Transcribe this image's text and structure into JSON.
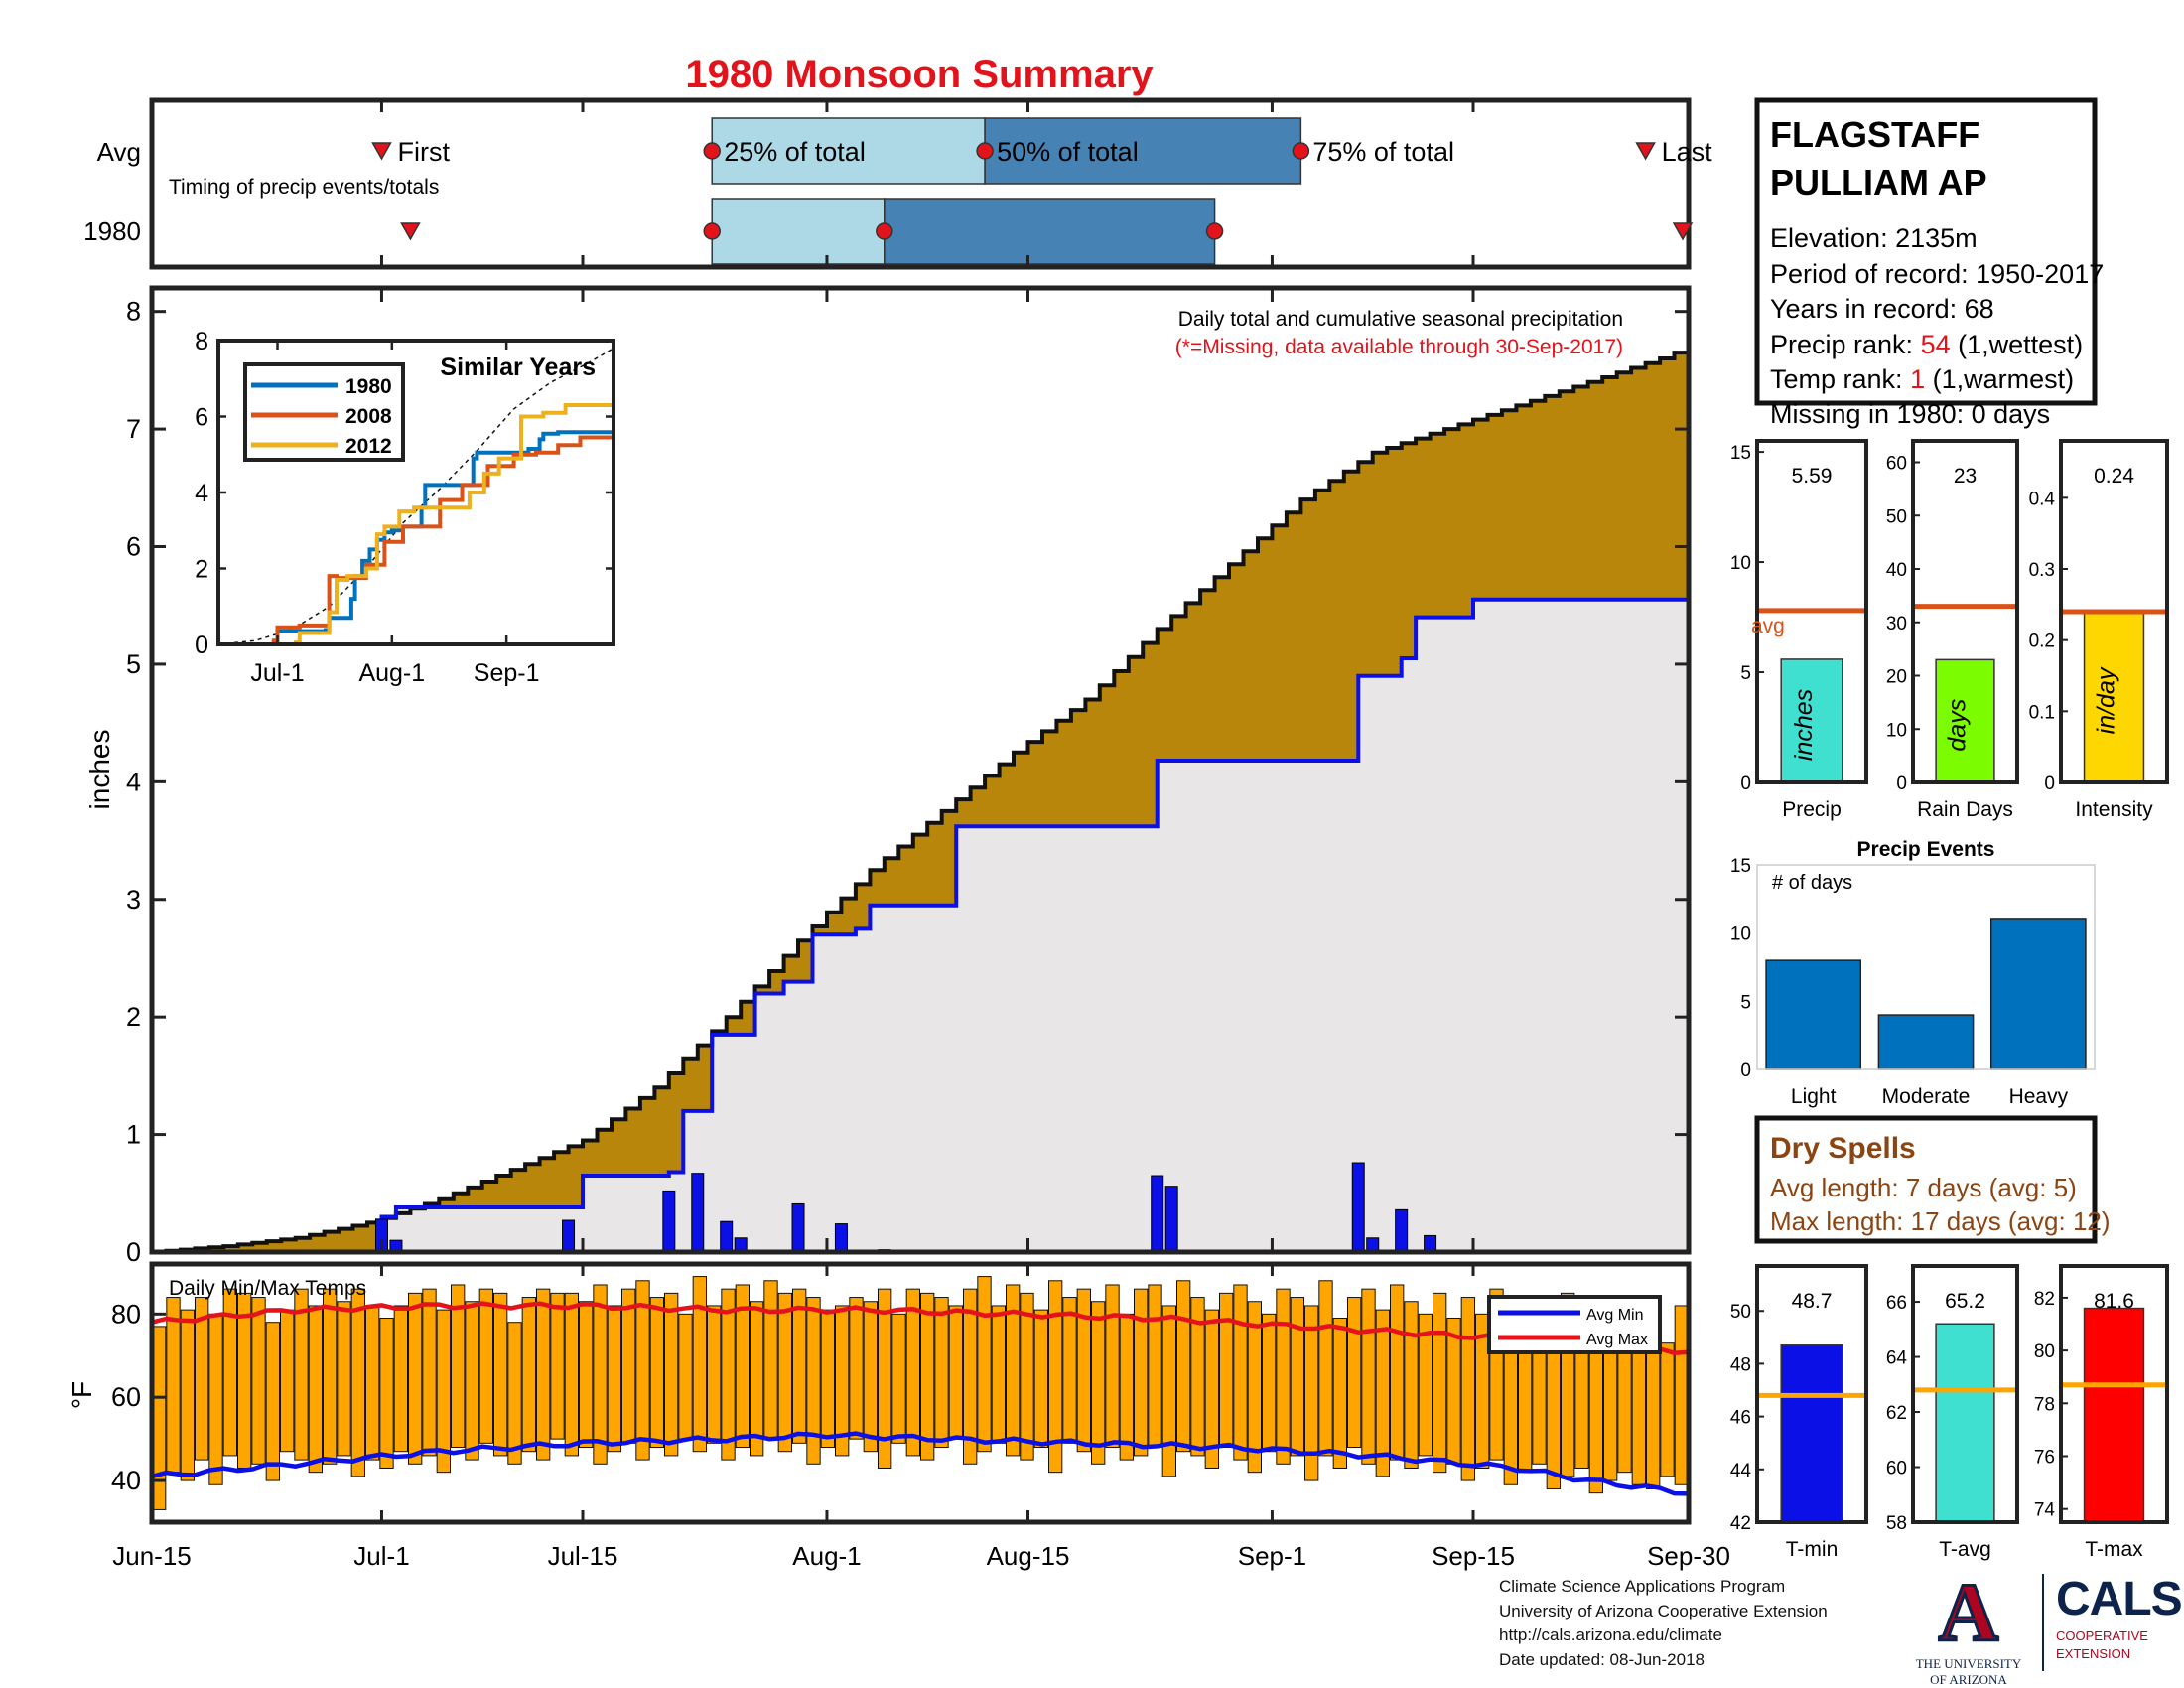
{
  "title": "1980 Monsoon Summary",
  "colors": {
    "title": "#e3131b",
    "red": "#e3131b",
    "brown_text": "#8b4513",
    "cum_fill": "#b8860b",
    "avg_fill": "#e8e6e6",
    "avg_line": "#0a10e6",
    "daily_bar": "#0a10e6",
    "temp_bar": "#ffa500",
    "avg_min_line": "#0a10e6",
    "avg_max_line": "#e3131b",
    "box_light": "#add8e6",
    "box_dark": "#4682b4",
    "events_bar": "#0072bd",
    "stat_avg_line": "#d95319",
    "temp_avg_line": "#ffa500"
  },
  "timing": {
    "label": "Timing of precip events/totals",
    "row_labels": [
      "Avg",
      "1980"
    ],
    "avg_labels": {
      "first": "First",
      "p25": "25% of total",
      "p50": "50% of total",
      "p75": "75% of total",
      "last": "Last"
    },
    "avg": {
      "first": 16,
      "p25": 39,
      "p50": 58,
      "p75": 80,
      "last": 104
    },
    "year": {
      "first": 18,
      "p25": 39,
      "p50": 51,
      "p75": 74,
      "last": 111
    }
  },
  "station": {
    "name_line1": "FLAGSTAFF",
    "name_line2": "PULLIAM AP",
    "elevation": "Elevation: 2135m",
    "period": "Period of record: 1950-2017",
    "years": "Years in record: 68",
    "precip_rank_label": "Precip rank: ",
    "precip_rank_value": "54",
    "precip_rank_note": " (1,wettest)",
    "temp_rank_label": "Temp rank: ",
    "temp_rank_value": "1",
    "temp_rank_note": " (1,warmest)",
    "missing": "Missing in 1980: 0 days"
  },
  "main_chart": {
    "ylabel": "inches",
    "ylim": [
      0,
      8.2
    ],
    "yticks": [
      0,
      1,
      2,
      3,
      4,
      5,
      6,
      7,
      8
    ],
    "annotation1": "Daily total and cumulative seasonal precipitation",
    "annotation2": "(*=Missing, data available through 30-Sep-2017)"
  },
  "x_axis": {
    "tick_labels": [
      "Jun-15",
      "Jul-1",
      "Jul-15",
      "Aug-1",
      "Aug-15",
      "Sep-1",
      "Sep-15",
      "Sep-30"
    ],
    "tick_days": [
      0,
      16,
      30,
      47,
      61,
      78,
      92,
      107
    ]
  },
  "inset": {
    "title": "Similar Years",
    "ylim": [
      0,
      8
    ],
    "yticks": [
      0,
      2,
      4,
      6,
      8
    ],
    "xtick_labels": [
      "Jul-1",
      "Aug-1",
      "Sep-1"
    ],
    "xtick_days": [
      16,
      47,
      78
    ]
  },
  "stats": {
    "precip": {
      "label": "Precip",
      "unit": "inches",
      "value_text": "5.59",
      "value": 5.59,
      "avg": 7.8,
      "avg_label": "avg",
      "ylim": [
        0,
        15.5
      ],
      "yticks": [
        0,
        5,
        10,
        15
      ],
      "color": "#40e0d0"
    },
    "rain_days": {
      "label": "Rain Days",
      "unit": "days",
      "value_text": "23",
      "value": 23,
      "avg": 33,
      "ylim": [
        0,
        64
      ],
      "yticks": [
        0,
        10,
        20,
        30,
        40,
        50,
        60
      ],
      "color": "#7cfc00"
    },
    "intensity": {
      "label": "Intensity",
      "unit": "in/day",
      "value_text": "0.24",
      "value": 0.24,
      "avg": 0.24,
      "ylim": [
        0,
        0.48
      ],
      "yticks": [
        "0",
        "0.1",
        "0.2",
        "0.3",
        "0.4"
      ],
      "yvals": [
        0,
        0.1,
        0.2,
        0.3,
        0.4
      ],
      "color": "#ffd700"
    }
  },
  "events": {
    "title": "Precip Events",
    "ylabel": "# of days",
    "ylim": [
      0,
      15
    ],
    "yticks": [
      0,
      5,
      10,
      15
    ],
    "categories": [
      "Light",
      "Moderate",
      "Heavy"
    ],
    "values": [
      8,
      4,
      11
    ]
  },
  "dry_spells": {
    "title": "Dry Spells",
    "avg_length": "Avg length: 7 days (avg: 5)",
    "max_length": "Max length: 17 days (avg: 12)"
  },
  "temps": {
    "title": "Daily Min/Max Temps",
    "ylabel": "°F",
    "ylim": [
      30,
      92
    ],
    "yticks": [
      40,
      60,
      80
    ],
    "legend": [
      "Avg Min",
      "Avg Max"
    ]
  },
  "temp_stats": {
    "tmin": {
      "label": "T-min",
      "value_text": "48.7",
      "value": 48.7,
      "avg": 46.8,
      "ylim": [
        42,
        51.7
      ],
      "yticks": [
        42,
        44,
        46,
        48,
        50
      ],
      "color": "#0a10e6"
    },
    "tavg": {
      "label": "T-avg",
      "value_text": "65.2",
      "value": 65.2,
      "avg": 62.8,
      "ylim": [
        58,
        67.3
      ],
      "yticks": [
        58,
        60,
        62,
        64,
        66
      ],
      "color": "#40e0d0"
    },
    "tmax": {
      "label": "T-max",
      "value_text": "81.6",
      "value": 81.6,
      "avg": 78.7,
      "ylim": [
        73.5,
        83.2
      ],
      "yticks": [
        74,
        76,
        78,
        80,
        82
      ],
      "color": "#ff0000"
    }
  },
  "footer": {
    "line1": "Climate Science Applications Program",
    "line2": "University of Arizona Cooperative Extension",
    "line3": "http://cals.arizona.edu/climate",
    "line4": " Date updated: 08-Jun-2018"
  },
  "logos": {
    "ua_mark": "A",
    "ua_name_line1": "THE UNIVERSITY",
    "ua_name_line2": "OF ARIZONA",
    "cals_word": "CALS",
    "cals_sub_line1": "COOPERATIVE",
    "cals_sub_line2": "EXTENSION"
  },
  "chart_data": [
    {
      "type": "area",
      "name": "Daily total and cumulative seasonal precipitation",
      "x_unit": "days since Jun-15",
      "avg_cumulative": {
        "x": [
          0,
          5,
          10,
          15,
          20,
          25,
          30,
          35,
          40,
          45,
          50,
          55,
          60,
          65,
          70,
          75,
          80,
          85,
          90,
          95,
          100,
          105,
          107
        ],
        "y": [
          0,
          0.05,
          0.12,
          0.25,
          0.45,
          0.7,
          0.95,
          1.4,
          2.0,
          2.65,
          3.25,
          3.75,
          4.25,
          4.7,
          5.3,
          5.85,
          6.4,
          6.8,
          7.0,
          7.2,
          7.4,
          7.6,
          7.7
        ]
      },
      "year_cumulative": {
        "x": [
          0,
          16,
          17,
          29,
          30,
          36,
          37,
          38,
          39,
          41,
          42,
          44,
          45,
          46,
          49,
          50,
          55,
          56,
          69,
          70,
          84,
          85,
          87,
          88,
          92,
          107
        ],
        "y": [
          0,
          0.3,
          0.38,
          0.38,
          0.65,
          0.68,
          1.2,
          1.2,
          1.85,
          1.85,
          2.2,
          2.3,
          2.3,
          2.7,
          2.75,
          2.95,
          2.95,
          3.62,
          3.62,
          4.18,
          4.9,
          4.9,
          5.05,
          5.4,
          5.55,
          5.59
        ]
      },
      "daily_bars": {
        "x": [
          16,
          17,
          29,
          36,
          38,
          40,
          41,
          45,
          48,
          51,
          70,
          71,
          84,
          85,
          87,
          89
        ],
        "y": [
          0.28,
          0.1,
          0.27,
          0.52,
          0.67,
          0.26,
          0.12,
          0.41,
          0.24,
          0.02,
          0.65,
          0.56,
          0.76,
          0.12,
          0.36,
          0.14
        ]
      }
    },
    {
      "type": "line",
      "title": "Similar Years",
      "x_unit": "days since Jun-15",
      "series": [
        {
          "name": "1980",
          "color": "#0072bd",
          "x": [
            0,
            15,
            16,
            29,
            30,
            36,
            37,
            39,
            41,
            43,
            45,
            47,
            50,
            55,
            56,
            69,
            70,
            84,
            87,
            88,
            92,
            107
          ],
          "y": [
            0,
            0.05,
            0.35,
            0.38,
            0.7,
            1.2,
            1.8,
            2.2,
            2.5,
            2.75,
            2.95,
            3.0,
            3.1,
            3.6,
            4.2,
            4.9,
            5.05,
            5.15,
            5.4,
            5.55,
            5.59,
            5.59
          ]
        },
        {
          "name": "2008",
          "color": "#d95319",
          "x": [
            0,
            15,
            16,
            22,
            30,
            32,
            40,
            45,
            50,
            60,
            66,
            73,
            80,
            86,
            92,
            98,
            107
          ],
          "y": [
            0,
            0.1,
            0.45,
            0.5,
            1.8,
            1.75,
            2.1,
            2.7,
            3.1,
            3.8,
            4.2,
            4.7,
            5.0,
            5.05,
            5.25,
            5.45,
            5.45
          ]
        },
        {
          "name": "2012",
          "color": "#edb120",
          "x": [
            0,
            21,
            22,
            30,
            32,
            35,
            40,
            43,
            45,
            49,
            53,
            57,
            61,
            68,
            72,
            76,
            82,
            88,
            94,
            107
          ],
          "y": [
            0,
            0.05,
            0.3,
            0.85,
            1.7,
            1.8,
            2.0,
            2.9,
            3.1,
            3.5,
            3.6,
            3.6,
            3.6,
            4.0,
            4.5,
            4.9,
            6.0,
            6.1,
            6.3,
            6.3
          ]
        }
      ],
      "dashed_avg": {
        "x": [
          0,
          10,
          20,
          30,
          40,
          50,
          60,
          70,
          80,
          90,
          100,
          107
        ],
        "y": [
          0,
          0.1,
          0.4,
          1.0,
          2.0,
          3.2,
          4.1,
          5.1,
          6.2,
          6.9,
          7.4,
          7.8
        ]
      }
    },
    {
      "type": "bar",
      "title": "Daily Min/Max Temps",
      "note": "Daily min-max ranges drawn as floating bars",
      "x_unit": "days since Jun-15",
      "avg_min": {
        "x": [
          0,
          10,
          20,
          30,
          40,
          47,
          55,
          65,
          75,
          85,
          95,
          100,
          107
        ],
        "y": [
          41,
          44,
          47,
          49,
          50,
          51,
          50,
          49,
          48,
          46,
          43,
          40,
          37
        ]
      },
      "avg_max": {
        "x": [
          0,
          10,
          20,
          30,
          40,
          50,
          60,
          70,
          80,
          90,
          95,
          100,
          107
        ],
        "y": [
          78,
          81,
          82,
          82,
          81,
          81,
          80,
          79,
          77,
          75,
          74,
          72,
          71
        ]
      },
      "daily_max": [
        77,
        84,
        81,
        84,
        80,
        86,
        85,
        84,
        78,
        81,
        86,
        82,
        86,
        83,
        86,
        82,
        79,
        82,
        85,
        86,
        81,
        87,
        83,
        86,
        85,
        78,
        84,
        86,
        85,
        85,
        83,
        87,
        82,
        86,
        88,
        84,
        85,
        80,
        89,
        82,
        86,
        87,
        83,
        88,
        85,
        86,
        84,
        81,
        82,
        84,
        83,
        86,
        80,
        86,
        85,
        84,
        82,
        86,
        89,
        82,
        87,
        85,
        81,
        88,
        84,
        86,
        83,
        87,
        80,
        86,
        87,
        82,
        88,
        84,
        81,
        85,
        87,
        83,
        80,
        86,
        84,
        82,
        88,
        79,
        84,
        86,
        81,
        87,
        83,
        80,
        85,
        79,
        84,
        80,
        86,
        78,
        83,
        80,
        77,
        85,
        79,
        82,
        76,
        81,
        78,
        84,
        73,
        82
      ],
      "daily_min": [
        33,
        42,
        40,
        45,
        39,
        46,
        43,
        44,
        40,
        47,
        45,
        42,
        44,
        46,
        41,
        45,
        43,
        47,
        44,
        46,
        42,
        48,
        45,
        49,
        46,
        44,
        47,
        45,
        50,
        46,
        48,
        44,
        47,
        49,
        45,
        48,
        46,
        50,
        47,
        49,
        45,
        48,
        46,
        50,
        47,
        49,
        44,
        48,
        46,
        50,
        47,
        43,
        49,
        46,
        45,
        48,
        50,
        44,
        47,
        49,
        46,
        45,
        48,
        42,
        49,
        47,
        44,
        48,
        45,
        46,
        48,
        41,
        47,
        46,
        43,
        48,
        45,
        42,
        47,
        44,
        46,
        40,
        46,
        43,
        48,
        44,
        41,
        45,
        43,
        46,
        42,
        44,
        40,
        43,
        45,
        39,
        42,
        44,
        38,
        41,
        43,
        37,
        40,
        42,
        39,
        38,
        41,
        39
      ]
    },
    {
      "type": "bar",
      "title": "Precip Events",
      "categories": [
        "Light",
        "Moderate",
        "Heavy"
      ],
      "values": [
        8,
        4,
        11
      ]
    }
  ]
}
